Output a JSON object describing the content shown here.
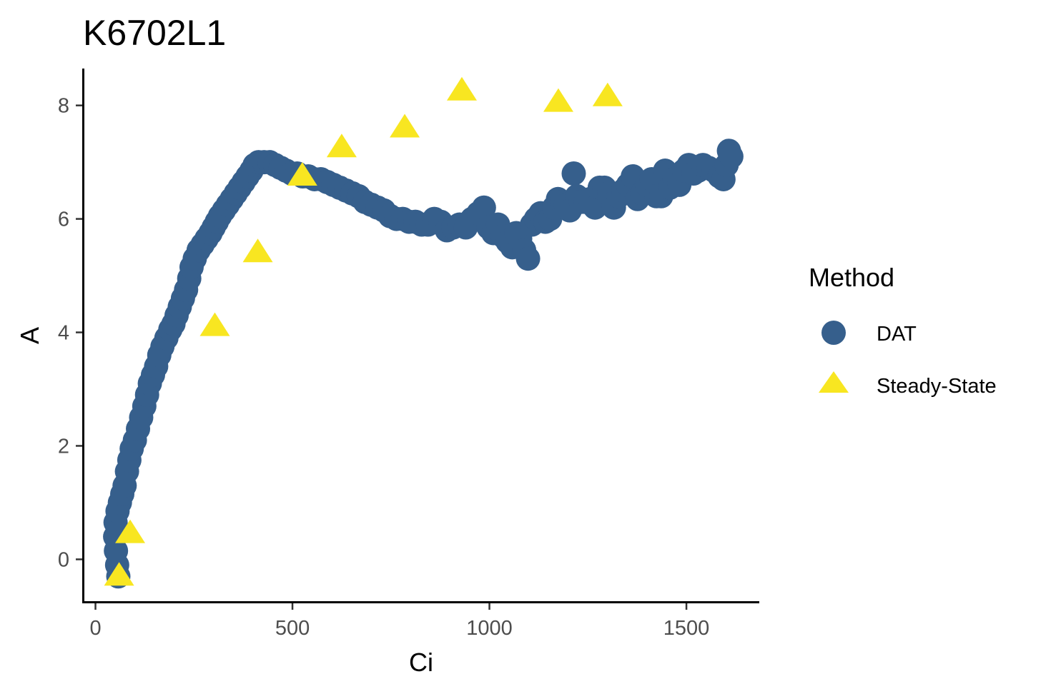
{
  "chart_data": {
    "type": "scatter",
    "title": "K6702L1",
    "xlabel": "Ci",
    "ylabel": "A",
    "xlim": [
      -30,
      1685
    ],
    "ylim": [
      -0.75,
      8.65
    ],
    "x_ticks": [
      0,
      500,
      1000,
      1500
    ],
    "y_ticks": [
      0,
      2,
      4,
      6,
      8
    ],
    "grid": false,
    "legend": {
      "title": "Method",
      "position": "right"
    },
    "colors": {
      "DAT": "#365f8c",
      "Steady-State": "#f8e621"
    },
    "series": [
      {
        "name": "DAT",
        "marker": "circle",
        "points": [
          [
            58,
            -0.3
          ],
          [
            55,
            -0.1
          ],
          [
            52,
            0.15
          ],
          [
            50,
            0.4
          ],
          [
            51,
            0.65
          ],
          [
            56,
            0.85
          ],
          [
            62,
            1.0
          ],
          [
            68,
            1.15
          ],
          [
            74,
            1.3
          ],
          [
            80,
            1.55
          ],
          [
            86,
            1.75
          ],
          [
            92,
            1.95
          ],
          [
            100,
            2.1
          ],
          [
            108,
            2.3
          ],
          [
            116,
            2.5
          ],
          [
            124,
            2.7
          ],
          [
            131,
            2.9
          ],
          [
            138,
            3.1
          ],
          [
            146,
            3.25
          ],
          [
            154,
            3.4
          ],
          [
            162,
            3.6
          ],
          [
            170,
            3.75
          ],
          [
            180,
            3.9
          ],
          [
            190,
            4.05
          ],
          [
            198,
            4.15
          ],
          [
            206,
            4.3
          ],
          [
            214,
            4.45
          ],
          [
            222,
            4.6
          ],
          [
            230,
            4.75
          ],
          [
            238,
            4.95
          ],
          [
            244,
            5.15
          ],
          [
            252,
            5.3
          ],
          [
            262,
            5.45
          ],
          [
            272,
            5.55
          ],
          [
            282,
            5.65
          ],
          [
            292,
            5.75
          ],
          [
            300,
            5.85
          ],
          [
            308,
            5.95
          ],
          [
            316,
            6.05
          ],
          [
            326,
            6.15
          ],
          [
            336,
            6.25
          ],
          [
            346,
            6.35
          ],
          [
            356,
            6.45
          ],
          [
            366,
            6.55
          ],
          [
            376,
            6.65
          ],
          [
            386,
            6.75
          ],
          [
            396,
            6.85
          ],
          [
            404,
            6.95
          ],
          [
            414,
            7.0
          ],
          [
            428,
            7.0
          ],
          [
            442,
            7.0
          ],
          [
            456,
            6.95
          ],
          [
            470,
            6.9
          ],
          [
            484,
            6.85
          ],
          [
            498,
            6.8
          ],
          [
            512,
            6.8
          ],
          [
            526,
            6.75
          ],
          [
            540,
            6.75
          ],
          [
            556,
            6.7
          ],
          [
            572,
            6.7
          ],
          [
            588,
            6.65
          ],
          [
            604,
            6.6
          ],
          [
            620,
            6.55
          ],
          [
            636,
            6.5
          ],
          [
            652,
            6.45
          ],
          [
            668,
            6.4
          ],
          [
            684,
            6.3
          ],
          [
            700,
            6.25
          ],
          [
            716,
            6.2
          ],
          [
            732,
            6.15
          ],
          [
            748,
            6.05
          ],
          [
            764,
            6.0
          ],
          [
            780,
            6.0
          ],
          [
            796,
            5.95
          ],
          [
            812,
            5.95
          ],
          [
            828,
            5.9
          ],
          [
            844,
            5.9
          ],
          [
            860,
            6.0
          ],
          [
            876,
            5.95
          ],
          [
            892,
            5.8
          ],
          [
            908,
            5.85
          ],
          [
            924,
            5.9
          ],
          [
            940,
            5.85
          ],
          [
            956,
            6.0
          ],
          [
            972,
            6.1
          ],
          [
            986,
            6.2
          ],
          [
            998,
            5.85
          ],
          [
            1010,
            5.75
          ],
          [
            1022,
            5.9
          ],
          [
            1034,
            5.7
          ],
          [
            1046,
            5.6
          ],
          [
            1058,
            5.5
          ],
          [
            1068,
            5.75
          ],
          [
            1078,
            5.65
          ],
          [
            1088,
            5.45
          ],
          [
            1098,
            5.3
          ],
          [
            1108,
            5.9
          ],
          [
            1118,
            6.0
          ],
          [
            1130,
            6.1
          ],
          [
            1142,
            5.95
          ],
          [
            1154,
            6.0
          ],
          [
            1164,
            6.2
          ],
          [
            1174,
            6.35
          ],
          [
            1184,
            6.3
          ],
          [
            1194,
            6.25
          ],
          [
            1204,
            6.15
          ],
          [
            1214,
            6.8
          ],
          [
            1222,
            6.4
          ],
          [
            1232,
            6.3
          ],
          [
            1244,
            6.3
          ],
          [
            1256,
            6.35
          ],
          [
            1268,
            6.2
          ],
          [
            1280,
            6.55
          ],
          [
            1292,
            6.55
          ],
          [
            1304,
            6.45
          ],
          [
            1316,
            6.2
          ],
          [
            1328,
            6.4
          ],
          [
            1340,
            6.5
          ],
          [
            1352,
            6.6
          ],
          [
            1364,
            6.75
          ],
          [
            1376,
            6.35
          ],
          [
            1388,
            6.45
          ],
          [
            1400,
            6.6
          ],
          [
            1412,
            6.7
          ],
          [
            1424,
            6.4
          ],
          [
            1436,
            6.4
          ],
          [
            1446,
            6.85
          ],
          [
            1458,
            6.55
          ],
          [
            1470,
            6.7
          ],
          [
            1482,
            6.6
          ],
          [
            1494,
            6.85
          ],
          [
            1506,
            6.95
          ],
          [
            1518,
            6.8
          ],
          [
            1530,
            6.85
          ],
          [
            1542,
            6.95
          ],
          [
            1556,
            6.9
          ],
          [
            1570,
            6.85
          ],
          [
            1584,
            6.75
          ],
          [
            1594,
            6.7
          ],
          [
            1602,
            6.95
          ],
          [
            1608,
            7.2
          ],
          [
            1614,
            7.1
          ]
        ]
      },
      {
        "name": "Steady-State",
        "marker": "triangle",
        "points": [
          [
            60,
            -0.3
          ],
          [
            88,
            0.45
          ],
          [
            303,
            4.1
          ],
          [
            412,
            5.4
          ],
          [
            525,
            6.75
          ],
          [
            625,
            7.25
          ],
          [
            785,
            7.6
          ],
          [
            930,
            8.25
          ],
          [
            1175,
            8.05
          ],
          [
            1300,
            8.15
          ]
        ]
      }
    ]
  }
}
